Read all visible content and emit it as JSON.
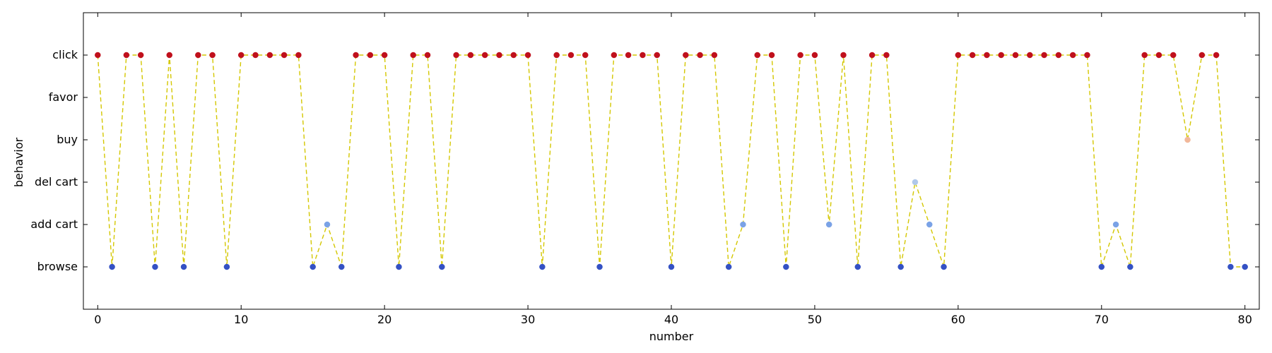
{
  "chart_data": {
    "type": "scatter",
    "title": "",
    "xlabel": "number",
    "ylabel": "behavior",
    "xlim": [
      -1,
      81
    ],
    "ylim": [
      -1,
      6
    ],
    "x_ticks": [
      0,
      10,
      20,
      30,
      40,
      50,
      60,
      70,
      80
    ],
    "y_ticks": [
      {
        "value": 0,
        "label": "browse"
      },
      {
        "value": 1,
        "label": "add cart"
      },
      {
        "value": 2,
        "label": "del cart"
      },
      {
        "value": 3,
        "label": "buy"
      },
      {
        "value": 4,
        "label": "favor"
      },
      {
        "value": 5,
        "label": "click"
      }
    ],
    "grid": false,
    "line_style": "dashed",
    "line_color": "#d4c700",
    "category_colors": {
      "browse": "#3451c4",
      "add cart": "#7aa2e6",
      "del cart": "#b0c8ea",
      "buy": "#f2b89a",
      "favor": "#e0604a",
      "click": "#c0101c"
    },
    "x": [
      0,
      1,
      2,
      3,
      4,
      5,
      6,
      7,
      8,
      9,
      10,
      11,
      12,
      13,
      14,
      15,
      16,
      17,
      18,
      19,
      20,
      21,
      22,
      23,
      24,
      25,
      26,
      27,
      28,
      29,
      30,
      31,
      32,
      33,
      34,
      35,
      36,
      37,
      38,
      39,
      40,
      41,
      42,
      43,
      44,
      45,
      46,
      47,
      48,
      49,
      50,
      51,
      52,
      53,
      54,
      55,
      56,
      57,
      58,
      59,
      60,
      61,
      62,
      63,
      64,
      65,
      66,
      67,
      68,
      69,
      70,
      71,
      72,
      73,
      74,
      75,
      76,
      77,
      78,
      79,
      80
    ],
    "y": [
      5,
      0,
      5,
      5,
      0,
      5,
      0,
      5,
      5,
      0,
      5,
      5,
      5,
      5,
      5,
      0,
      1,
      0,
      5,
      5,
      5,
      0,
      5,
      5,
      0,
      5,
      5,
      5,
      5,
      5,
      5,
      0,
      5,
      5,
      5,
      0,
      5,
      5,
      5,
      5,
      0,
      5,
      5,
      5,
      0,
      1,
      5,
      5,
      0,
      5,
      5,
      1,
      5,
      0,
      5,
      5,
      0,
      2,
      1,
      0,
      5,
      5,
      5,
      5,
      5,
      5,
      5,
      5,
      5,
      5,
      0,
      1,
      0,
      5,
      5,
      5,
      3,
      5,
      5,
      0,
      0
    ]
  }
}
